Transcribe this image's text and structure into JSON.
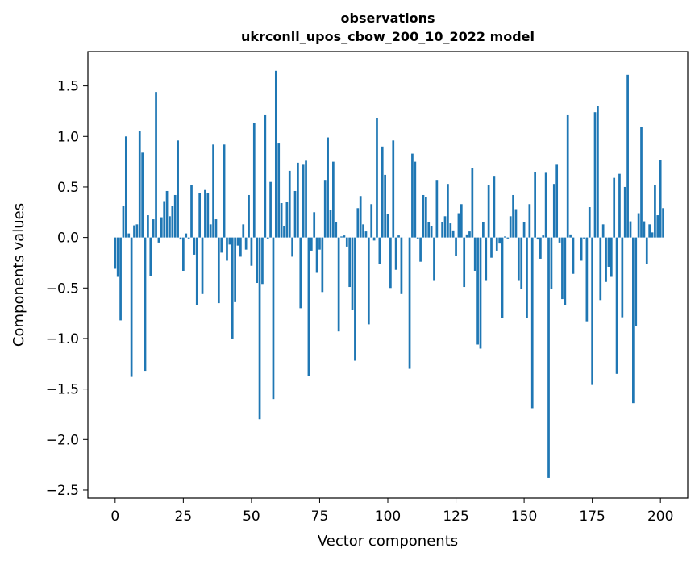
{
  "chart_data": {
    "type": "bar",
    "title": "observations",
    "subtitle": "ukrconll_upos_cbow_200_10_2022 model",
    "xlabel": "Vector components",
    "ylabel": "Components values",
    "xlim": [
      -10,
      210
    ],
    "ylim": [
      -2.58,
      1.84
    ],
    "xticks": [
      0,
      25,
      50,
      75,
      100,
      125,
      150,
      175,
      200
    ],
    "yticks": [
      1.5,
      1.0,
      0.5,
      0.0,
      -0.5,
      -1.0,
      -1.5,
      -2.0,
      -2.5
    ],
    "ytick_labels": [
      "1.5",
      "1.0",
      "0.5",
      "0.0",
      "−0.5",
      "−1.0",
      "−1.5",
      "−2.0",
      "−2.5"
    ],
    "bar_color": "#1f77b4",
    "values": [
      -0.31,
      -0.39,
      -0.82,
      0.31,
      1.0,
      0.04,
      -1.38,
      0.12,
      0.13,
      1.05,
      0.84,
      -1.32,
      0.22,
      -0.38,
      0.18,
      1.44,
      -0.05,
      0.2,
      0.36,
      0.46,
      0.21,
      0.31,
      0.42,
      0.96,
      -0.02,
      -0.33,
      0.04,
      -0.01,
      0.52,
      -0.17,
      -0.67,
      0.44,
      -0.56,
      0.47,
      0.44,
      0.13,
      0.92,
      0.18,
      -0.65,
      -0.15,
      0.92,
      -0.23,
      -0.07,
      -1.0,
      -0.64,
      -0.08,
      -0.19,
      0.13,
      -0.12,
      0.42,
      -0.28,
      1.13,
      -0.45,
      -1.8,
      -0.46,
      1.21,
      -0.01,
      0.55,
      -1.6,
      1.65,
      0.93,
      0.34,
      0.11,
      0.35,
      0.66,
      -0.19,
      0.46,
      0.74,
      -0.7,
      0.72,
      0.76,
      -1.37,
      -0.13,
      0.25,
      -0.35,
      -0.12,
      -0.54,
      0.57,
      0.99,
      0.27,
      0.75,
      0.15,
      -0.93,
      0.01,
      0.02,
      -0.09,
      -0.49,
      -0.72,
      -1.22,
      0.29,
      0.41,
      0.13,
      0.06,
      -0.86,
      0.33,
      -0.03,
      1.18,
      -0.26,
      0.9,
      0.62,
      0.23,
      -0.5,
      0.96,
      -0.32,
      0.02,
      -0.56,
      0.0,
      0.0,
      -1.3,
      0.83,
      0.75,
      -0.01,
      -0.24,
      0.42,
      0.4,
      0.15,
      0.11,
      -0.43,
      0.57,
      0.0,
      0.15,
      0.21,
      0.53,
      0.14,
      0.07,
      -0.18,
      0.24,
      0.33,
      -0.49,
      0.03,
      0.06,
      0.69,
      -0.33,
      -1.06,
      -1.1,
      0.15,
      -0.43,
      0.52,
      -0.2,
      0.61,
      -0.13,
      -0.06,
      -0.8,
      0.01,
      -0.01,
      0.21,
      0.42,
      0.28,
      -0.43,
      -0.51,
      0.15,
      -0.8,
      0.33,
      -1.69,
      0.65,
      -0.02,
      -0.21,
      0.02,
      0.64,
      -2.38,
      -0.51,
      0.53,
      0.72,
      -0.05,
      -0.61,
      -0.67,
      1.21,
      0.03,
      -0.36,
      0.0,
      0.0,
      -0.23,
      -0.01,
      -0.83,
      0.3,
      -1.46,
      1.24,
      1.3,
      -0.62,
      0.13,
      -0.44,
      -0.29,
      -0.39,
      0.59,
      -1.35,
      0.63,
      -0.79,
      0.5,
      1.61,
      0.16,
      -1.64,
      -0.88,
      0.24,
      1.09,
      0.16,
      -0.26,
      0.13,
      0.05,
      0.52,
      0.22,
      0.77,
      0.29
    ]
  }
}
